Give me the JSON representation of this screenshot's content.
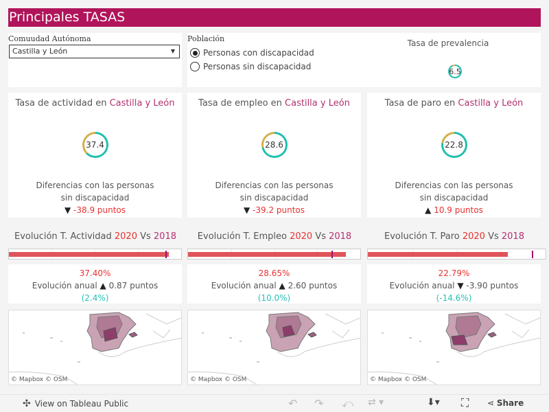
{
  "title": "Principales TASAS",
  "filters": {
    "ccaa_label": "Comuudad  Autónoma",
    "ccaa_value": "Castilla y León",
    "poblacion_label": "Población",
    "options": [
      {
        "label": "Personas con discapacidad",
        "selected": true
      },
      {
        "label": "Personas sin discapacidad",
        "selected": false
      }
    ]
  },
  "prevalencia": {
    "label": "Tasa de prevalencia",
    "value": "6.5",
    "pct": 6.5
  },
  "kpis": [
    {
      "prefix": "Tasa de actividad en ",
      "region": "Castilla y León",
      "value": "37.4",
      "pct": 37.4,
      "diff_label": "Diferencias con las personas sin discapacidad",
      "arrow": "▼",
      "diff": "-38.9 puntos"
    },
    {
      "prefix": "Tasa de empleo en ",
      "region": "Castilla y León",
      "value": "28.6",
      "pct": 28.6,
      "diff_label": "Diferencias con las personas sin discapacidad",
      "arrow": "▼",
      "diff": "-39.2 puntos"
    },
    {
      "prefix": "Tasa de paro en ",
      "region": "Castilla y León",
      "value": "22.8",
      "pct": 22.8,
      "diff_label": "Diferencias con las personas sin discapacidad",
      "arrow": "▲",
      "diff": "10.9 puntos"
    }
  ],
  "evolution": [
    {
      "prefix": "Evolución T. Actividad ",
      "y1": "2020",
      "vs": " Vs ",
      "y2": "2018",
      "value_2020": 37.4,
      "value_2018": 36.53,
      "axis_max": 38,
      "pct": "37.40%",
      "label": "Evolución anual",
      "arrow": "▲",
      "change": "0.87 puntos",
      "rel": "(2.4%)"
    },
    {
      "prefix": "Evolución T. Empleo ",
      "y1": "2020",
      "vs": " Vs ",
      "y2": "2018",
      "value_2020": 28.65,
      "value_2018": 26.05,
      "axis_max": 29.5,
      "pct": "28.65%",
      "label": "Evolución anual",
      "arrow": "▲",
      "change": "2.60 puntos",
      "rel": "(10.0%)"
    },
    {
      "prefix": "Evolución T. Paro ",
      "y1": "2020",
      "vs": " Vs ",
      "y2": "2018",
      "value_2020": 22.79,
      "value_2018": 26.69,
      "axis_max": 27.4,
      "pct": "22.79%",
      "label": "Evolución anual",
      "arrow": "▼",
      "change": "-3.90 puntos",
      "rel": "(-14.6%)"
    }
  ],
  "map_attribution": "© Mapbox  © OSM",
  "footer": {
    "view": "View on Tableau Public",
    "share": "Share"
  },
  "colors": {
    "brand": "#b0145a",
    "gold": "#d4b04a",
    "teal": "#1fbfae",
    "bar": "#e0555a",
    "marker": "#a0106e"
  }
}
